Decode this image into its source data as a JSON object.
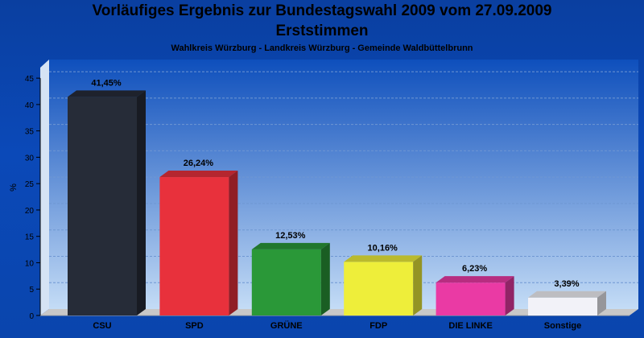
{
  "chart_data": {
    "type": "bar",
    "title": "Vorläufiges Ergebnis zur Bundestagswahl 2009 vom 27.09.2009",
    "title2": "Erststimmen",
    "subtitle": "Wahlkreis Würzburg - Landkreis Würzburg - Gemeinde Waldbüttelbrunn",
    "ylabel": "%",
    "ylim": [
      0,
      47
    ],
    "yticks": [
      0,
      5,
      10,
      15,
      20,
      25,
      30,
      35,
      40,
      45
    ],
    "categories": [
      "CSU",
      "SPD",
      "GRÜNE",
      "FDP",
      "DIE LINKE",
      "Sonstige"
    ],
    "values": [
      41.45,
      26.24,
      12.53,
      10.16,
      6.23,
      3.39
    ],
    "value_labels": [
      "41,45%",
      "26,24%",
      "12,53%",
      "10,16%",
      "6,23%",
      "3,39%"
    ],
    "colors": [
      "#262c38",
      "#e8313c",
      "#2a9838",
      "#eeee3a",
      "#ea3aa4",
      "#f2f2f8"
    ],
    "grid": true
  }
}
